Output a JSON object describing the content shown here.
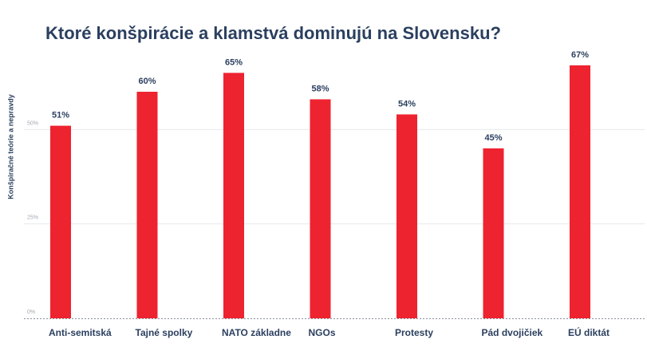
{
  "chart_data": {
    "type": "bar",
    "title": "Ktoré konšpirácie a klamstvá dominujú na Slovensku?",
    "ylabel": "Konšpiračné teórie a nepravdy",
    "xlabel": "",
    "categories": [
      "Anti-semitská",
      "Tajné spolky",
      "NATO základne",
      "NGOs",
      "Protesty",
      "Pád dvojičiek",
      "EÚ diktát"
    ],
    "values": [
      51,
      60,
      65,
      58,
      54,
      45,
      67
    ],
    "value_labels": [
      "51%",
      "60%",
      "65%",
      "58%",
      "54%",
      "45%",
      "67%"
    ],
    "ylim": [
      0,
      75
    ],
    "yticks": [
      0,
      25,
      50
    ],
    "ytick_labels": [
      "0%",
      "25%",
      "50%"
    ],
    "grid": true,
    "legend": "none",
    "colors": {
      "bar": "#ee2330",
      "text": "#2b3f5f",
      "grid": "#e6e8ec",
      "tick": "#a3a8b3",
      "axis": "#8a909c"
    }
  }
}
